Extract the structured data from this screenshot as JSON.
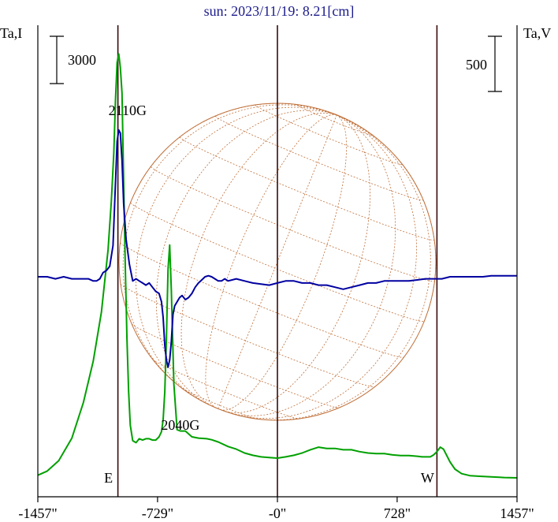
{
  "chart_data": {
    "type": "line",
    "title": "sun: 2023/11/19: 8.21[cm]",
    "xlabel": "",
    "ylabel_left": "Ta,I",
    "ylabel_right": "Ta,V",
    "xlim": [
      -1457,
      1457
    ],
    "x_ticks": [
      {
        "value": -1457,
        "label": "-1457\""
      },
      {
        "value": -729,
        "label": "-729\""
      },
      {
        "value": 0,
        "label": "-0\""
      },
      {
        "value": 728,
        "label": "728\""
      },
      {
        "value": 1457,
        "label": "1457\""
      }
    ],
    "limb_markers": [
      {
        "value": -970,
        "label": "E"
      },
      {
        "value": 0,
        "label": ""
      },
      {
        "value": 970,
        "label": "W"
      }
    ],
    "scale_bars": [
      {
        "axis": "left",
        "label": "3000"
      },
      {
        "axis": "right",
        "label": "500"
      }
    ],
    "annotations": [
      {
        "text": "2110G",
        "x": -950,
        "series": "Stokes I"
      },
      {
        "text": "2040G",
        "x": -590,
        "series": "Stokes V"
      }
    ],
    "series": [
      {
        "id": "I",
        "color": "#00a000",
        "x": [
          -1457,
          -1400,
          -1330,
          -1250,
          -1180,
          -1120,
          -1070,
          -1030,
          -1010,
          -995,
          -985,
          -975,
          -965,
          -955,
          -945,
          -935,
          -925,
          -915,
          -905,
          -895,
          -880,
          -860,
          -840,
          -820,
          -800,
          -780,
          -760,
          -740,
          -720,
          -705,
          -695,
          -685,
          -675,
          -665,
          -655,
          -645,
          -630,
          -610,
          -590,
          -560,
          -520,
          -480,
          -430,
          -400,
          -360,
          -300,
          -250,
          -200,
          -150,
          -100,
          -50,
          0,
          50,
          100,
          150,
          200,
          250,
          300,
          350,
          400,
          450,
          500,
          550,
          600,
          650,
          700,
          750,
          800,
          850,
          880,
          900,
          930,
          950,
          970,
          990,
          1010,
          1030,
          1050,
          1080,
          1120,
          1170,
          1230,
          1300,
          1380,
          1457
        ],
        "values": [
          32,
          160,
          480,
          1180,
          2280,
          3560,
          5080,
          7000,
          8520,
          10000,
          11620,
          12800,
          13060,
          12640,
          11860,
          9100,
          6460,
          4240,
          2620,
          1580,
          1100,
          1040,
          1160,
          1120,
          1160,
          1160,
          1120,
          1120,
          1220,
          1380,
          1750,
          2620,
          4300,
          6400,
          7150,
          5750,
          2860,
          1440,
          1400,
          1400,
          1220,
          1180,
          1160,
          1130,
          1060,
          920,
          840,
          720,
          650,
          600,
          580,
          560,
          600,
          650,
          720,
          820,
          900,
          860,
          860,
          820,
          820,
          760,
          720,
          700,
          700,
          660,
          640,
          640,
          620,
          600,
          600,
          600,
          660,
          760,
          900,
          840,
          640,
          440,
          220,
          80,
          20,
          0,
          -20,
          -40,
          -50
        ]
      },
      {
        "id": "V",
        "color": "#0000a0",
        "x": [
          -1457,
          -1400,
          -1350,
          -1300,
          -1250,
          -1200,
          -1150,
          -1120,
          -1100,
          -1080,
          -1060,
          -1040,
          -1020,
          -1000,
          -985,
          -975,
          -965,
          -955,
          -945,
          -935,
          -920,
          -900,
          -880,
          -860,
          -840,
          -820,
          -800,
          -780,
          -760,
          -740,
          -720,
          -705,
          -695,
          -685,
          -675,
          -665,
          -655,
          -645,
          -635,
          -625,
          -610,
          -595,
          -580,
          -560,
          -540,
          -520,
          -500,
          -480,
          -460,
          -440,
          -420,
          -400,
          -380,
          -360,
          -340,
          -320,
          -300,
          -250,
          -200,
          -150,
          -100,
          -50,
          0,
          50,
          100,
          150,
          200,
          250,
          300,
          350,
          400,
          450,
          500,
          550,
          600,
          650,
          700,
          750,
          800,
          850,
          900,
          950,
          970,
          1000,
          1050,
          1100,
          1150,
          1200,
          1250,
          1300,
          1350,
          1400,
          1457
        ],
        "values": [
          0,
          0,
          -20,
          0,
          -20,
          -20,
          -20,
          -40,
          -40,
          -20,
          40,
          60,
          100,
          300,
          900,
          1300,
          1410,
          1380,
          1120,
          700,
          360,
          120,
          -40,
          -20,
          -40,
          -60,
          -80,
          -60,
          -100,
          -140,
          -160,
          -240,
          -390,
          -660,
          -800,
          -870,
          -800,
          -620,
          -360,
          -280,
          -240,
          -200,
          -180,
          -220,
          -200,
          -160,
          -100,
          -60,
          -30,
          0,
          10,
          0,
          -20,
          -40,
          -40,
          -20,
          -40,
          -20,
          -40,
          -60,
          -70,
          -80,
          -60,
          -40,
          -40,
          -60,
          -60,
          -80,
          -80,
          -100,
          -120,
          -100,
          -80,
          -60,
          -60,
          -40,
          -40,
          -40,
          -40,
          -30,
          -20,
          -20,
          -20,
          -20,
          0,
          0,
          0,
          0,
          0,
          10,
          10,
          10,
          10
        ]
      }
    ]
  }
}
